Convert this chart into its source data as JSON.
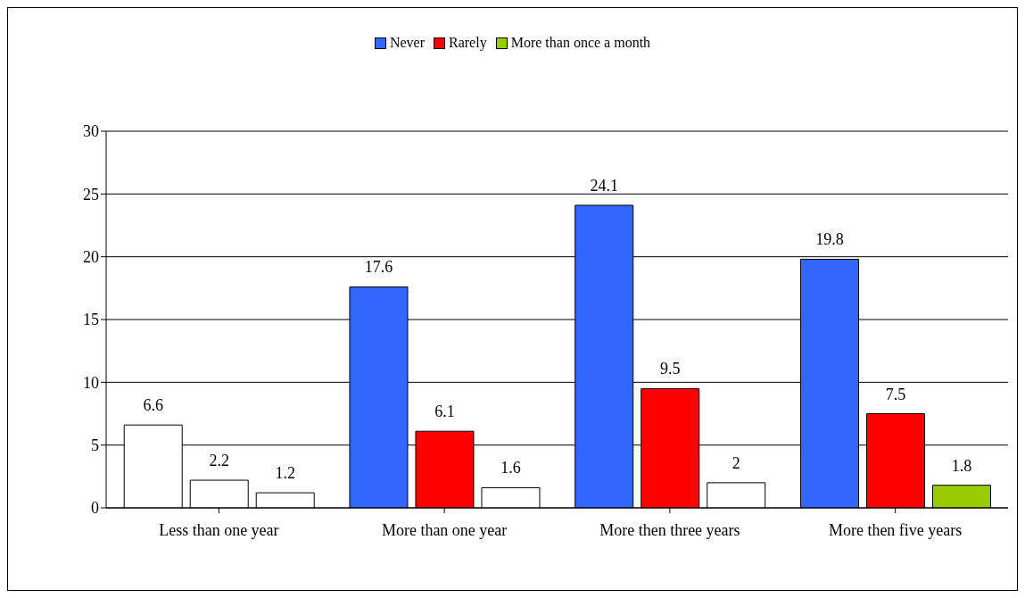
{
  "chart_data": {
    "type": "bar",
    "categories": [
      "Less than one year",
      "More than one year",
      "More then three years",
      "More then five years"
    ],
    "series": [
      {
        "name": "Never",
        "color": "#3366ff",
        "colors": [
          "#ffffff",
          "#3366ff",
          "#3366ff",
          "#3366ff"
        ],
        "values": [
          6.6,
          17.6,
          24.1,
          19.8
        ]
      },
      {
        "name": "Rarely",
        "color": "#ff0000",
        "colors": [
          "#ffffff",
          "#ff0000",
          "#ff0000",
          "#ff0000"
        ],
        "values": [
          2.2,
          6.1,
          9.5,
          7.5
        ]
      },
      {
        "name": "More than once a month",
        "color": "#99cc00",
        "colors": [
          "#ffffff",
          "#ffffff",
          "#ffffff",
          "#99cc00"
        ],
        "values": [
          1.2,
          1.6,
          2,
          1.8
        ]
      }
    ],
    "ylim": [
      0,
      30
    ],
    "yticks": [
      0,
      5,
      10,
      15,
      20,
      25,
      30
    ],
    "grid": "y",
    "legend": "top",
    "data_labels": true
  }
}
